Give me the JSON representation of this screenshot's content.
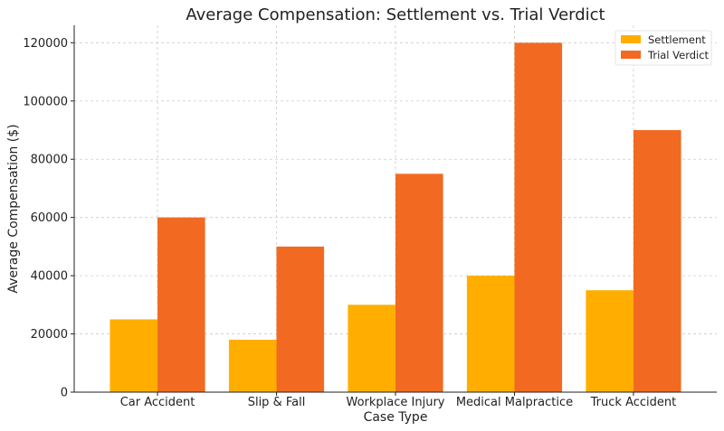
{
  "chart_data": {
    "type": "bar",
    "title": "Average Compensation: Settlement vs. Trial Verdict",
    "xlabel": "Case Type",
    "ylabel": "Average Compensation ($)",
    "categories": [
      "Car Accident",
      "Slip & Fall",
      "Workplace Injury",
      "Medical Malpractice",
      "Truck Accident"
    ],
    "series": [
      {
        "name": "Settlement",
        "color": "#FFAE00",
        "values": [
          25000,
          18000,
          30000,
          40000,
          35000
        ]
      },
      {
        "name": "Trial Verdict",
        "color": "#F26A21",
        "values": [
          60000,
          50000,
          75000,
          120000,
          90000
        ]
      }
    ],
    "ylim": [
      0,
      126000
    ],
    "yticks": [
      0,
      20000,
      40000,
      60000,
      80000,
      100000,
      120000
    ],
    "grid": true,
    "legend": "top-right"
  }
}
